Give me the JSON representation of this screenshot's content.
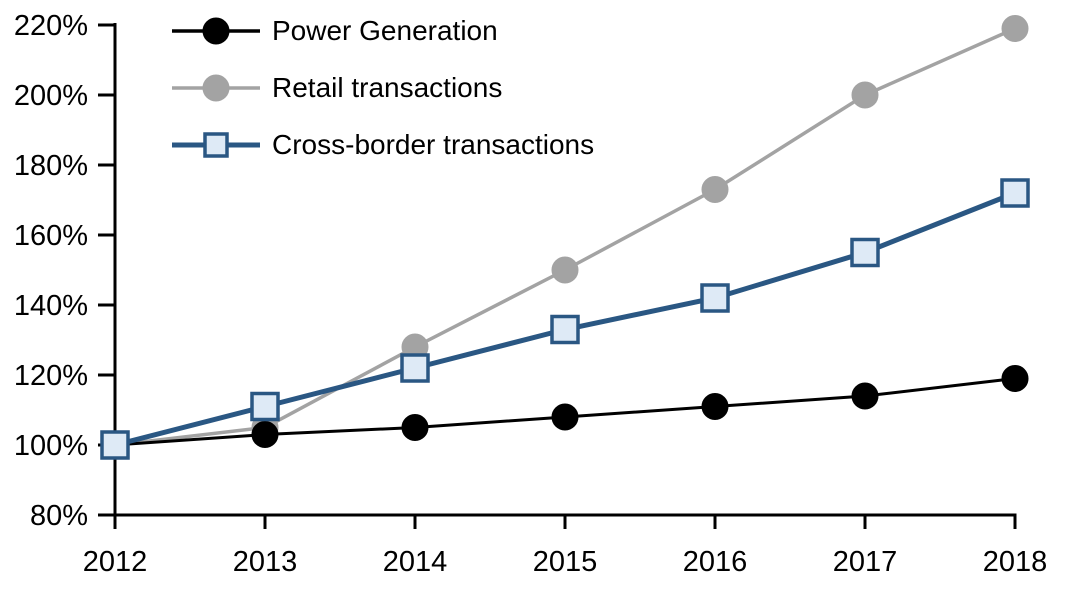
{
  "chart_data": {
    "type": "line",
    "title": "",
    "xlabel": "",
    "ylabel": "",
    "categories": [
      "2012",
      "2013",
      "2014",
      "2015",
      "2016",
      "2017",
      "2018"
    ],
    "series": [
      {
        "name": "Power Generation",
        "color": "#000000",
        "line_width": 3,
        "marker": "circle",
        "marker_fill": "#000000",
        "marker_stroke": "#000000",
        "values": [
          100,
          103,
          105,
          108,
          111,
          114,
          119
        ]
      },
      {
        "name": "Retail transactions",
        "color": "#A3A3A3",
        "line_width": 3.5,
        "marker": "circle",
        "marker_fill": "#A3A3A3",
        "marker_stroke": "#A3A3A3",
        "values": [
          100,
          105,
          128,
          150,
          173,
          200,
          219
        ]
      },
      {
        "name": "Cross-border transactions",
        "color": "#2A5783",
        "line_width": 5,
        "marker": "square",
        "marker_fill": "#DEEAF6",
        "marker_stroke": "#2A5783",
        "values": [
          100,
          111,
          122,
          133,
          142,
          155,
          172
        ]
      }
    ],
    "draw_order": [
      1,
      0,
      2
    ],
    "ylim": [
      80,
      220
    ],
    "ytick_step": 20,
    "ytick_labels": [
      "80%",
      "100%",
      "120%",
      "140%",
      "160%",
      "180%",
      "200%",
      "220%"
    ],
    "ytick_suffix": "%",
    "grid": false,
    "legend_position": "top-left",
    "axis_color": "#000000",
    "background": "#FFFFFF"
  }
}
